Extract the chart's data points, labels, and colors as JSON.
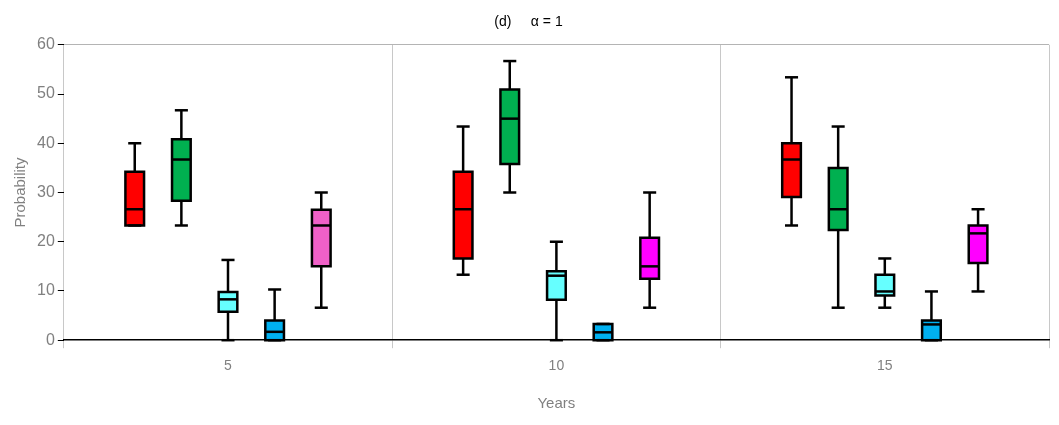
{
  "chart_data": {
    "type": "box",
    "title": "(d)     α = 1",
    "xlabel": "Years",
    "ylabel": "Probability",
    "categories": [
      "5",
      "10",
      "15"
    ],
    "ylim": [
      0,
      60
    ],
    "yticks": [
      0,
      10,
      20,
      30,
      40,
      50,
      60
    ],
    "grid": "x",
    "series": [
      {
        "color": "#ff0000",
        "boxes": [
          {
            "low": 23.3,
            "q1": 23.3,
            "median": 26.6,
            "q3": 34.2,
            "high": 40
          },
          {
            "low": 13.3,
            "q1": 16.6,
            "median": 26.6,
            "q3": 34.2,
            "high": 43.4
          },
          {
            "low": 23.3,
            "q1": 29.1,
            "median": 36.7,
            "q3": 40,
            "high": 53.4
          }
        ]
      },
      {
        "color": "#00b050",
        "boxes": [
          {
            "low": 23.3,
            "q1": 28.3,
            "median": 36.7,
            "q3": 40.8,
            "high": 46.7
          },
          {
            "low": 30,
            "q1": 35.8,
            "median": 45,
            "q3": 50.9,
            "high": 56.7
          },
          {
            "low": 6.6,
            "q1": 22.4,
            "median": 26.6,
            "q3": 35,
            "high": 43.4
          }
        ]
      },
      {
        "color": "#66ffff",
        "boxes": [
          {
            "low": 0,
            "q1": 5.8,
            "median": 8.3,
            "q3": 9.8,
            "high": 16.3
          },
          {
            "low": 0,
            "q1": 8.2,
            "median": 13.1,
            "q3": 14,
            "high": 20
          },
          {
            "low": 6.6,
            "q1": 9.1,
            "median": 9.9,
            "q3": 13.3,
            "high": 16.6
          }
        ]
      },
      {
        "color": "#00b0f0",
        "boxes": [
          {
            "low": 0,
            "q1": 0,
            "median": 1.7,
            "q3": 4,
            "high": 10.3
          },
          {
            "low": 0,
            "q1": 0,
            "median": 1.6,
            "q3": 3.3,
            "high": 3.3
          },
          {
            "low": 0,
            "q1": 0,
            "median": 3.2,
            "q3": 4,
            "high": 9.9
          }
        ]
      },
      {
        "colors": [
          "#f060c8",
          "#ff00ff",
          "#ff00ff"
        ],
        "boxes": [
          {
            "low": 6.6,
            "q1": 15,
            "median": 23.3,
            "q3": 26.5,
            "high": 30
          },
          {
            "low": 6.6,
            "q1": 12.5,
            "median": 15,
            "q3": 20.8,
            "high": 30
          },
          {
            "low": 9.9,
            "q1": 15.7,
            "median": 21.7,
            "q3": 23.3,
            "high": 26.6
          }
        ]
      }
    ]
  }
}
